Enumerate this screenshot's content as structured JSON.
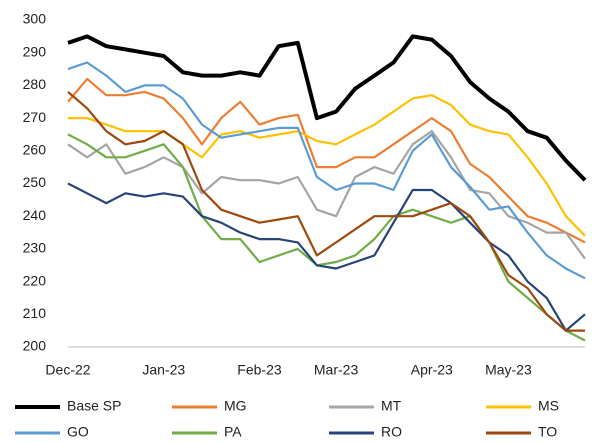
{
  "chart_data": {
    "type": "line",
    "categories": [
      "Dec-22",
      null,
      null,
      null,
      null,
      "Jan-23",
      null,
      null,
      null,
      null,
      "Feb-23",
      null,
      null,
      null,
      "Mar-23",
      null,
      null,
      null,
      null,
      "Apr-23",
      null,
      null,
      null,
      "May-23",
      null,
      null,
      null,
      null
    ],
    "ylim": [
      200,
      300
    ],
    "yticks": [
      200,
      210,
      220,
      230,
      240,
      250,
      260,
      270,
      280,
      290,
      300
    ],
    "grid": false,
    "legend": "bottom",
    "series": [
      {
        "name": "Base SP",
        "color": "#000000",
        "values": [
          293,
          295,
          292,
          291,
          290,
          289,
          284,
          283,
          283,
          284,
          283,
          292,
          293,
          270,
          272,
          279,
          283,
          287,
          295,
          294,
          289,
          281,
          276,
          272,
          266,
          264,
          257,
          251
        ]
      },
      {
        "name": "MG",
        "color": "#ED7D31",
        "values": [
          275,
          282,
          277,
          277,
          278,
          276,
          270,
          262,
          270,
          275,
          268,
          270,
          271,
          255,
          255,
          258,
          258,
          262,
          266,
          270,
          266,
          256,
          252,
          246,
          240,
          238,
          235,
          232
        ]
      },
      {
        "name": "MT",
        "color": "#A5A5A5",
        "values": [
          262,
          258,
          262,
          253,
          255,
          258,
          255,
          247,
          252,
          251,
          251,
          250,
          252,
          242,
          240,
          252,
          255,
          253,
          262,
          266,
          258,
          248,
          247,
          240,
          238,
          235,
          235,
          227
        ]
      },
      {
        "name": "MS",
        "color": "#FFC000",
        "values": [
          270,
          270,
          268,
          266,
          266,
          266,
          262,
          258,
          265,
          266,
          264,
          265,
          266,
          263,
          262,
          265,
          268,
          272,
          276,
          277,
          274,
          268,
          266,
          265,
          258,
          250,
          240,
          234
        ]
      },
      {
        "name": "GO",
        "color": "#5B9BD5",
        "values": [
          285,
          287,
          283,
          278,
          280,
          280,
          276,
          268,
          264,
          265,
          266,
          267,
          267,
          252,
          248,
          250,
          250,
          248,
          260,
          265,
          255,
          249,
          242,
          243,
          235,
          228,
          224,
          221
        ]
      },
      {
        "name": "PA",
        "color": "#70AD47",
        "values": [
          265,
          262,
          258,
          258,
          260,
          262,
          255,
          240,
          233,
          233,
          226,
          228,
          230,
          225,
          226,
          228,
          233,
          240,
          242,
          240,
          238,
          240,
          232,
          220,
          215,
          210,
          205,
          202
        ]
      },
      {
        "name": "RO",
        "color": "#264478",
        "values": [
          250,
          247,
          244,
          247,
          246,
          247,
          246,
          240,
          238,
          235,
          233,
          233,
          232,
          225,
          224,
          226,
          228,
          238,
          248,
          248,
          244,
          238,
          232,
          228,
          220,
          215,
          205,
          210
        ]
      },
      {
        "name": "TO",
        "color": "#9E480E",
        "values": [
          278,
          273,
          266,
          262,
          263,
          266,
          262,
          248,
          242,
          240,
          238,
          239,
          240,
          228,
          232,
          236,
          240,
          240,
          240,
          242,
          244,
          240,
          232,
          222,
          218,
          210,
          205,
          205
        ]
      }
    ]
  }
}
